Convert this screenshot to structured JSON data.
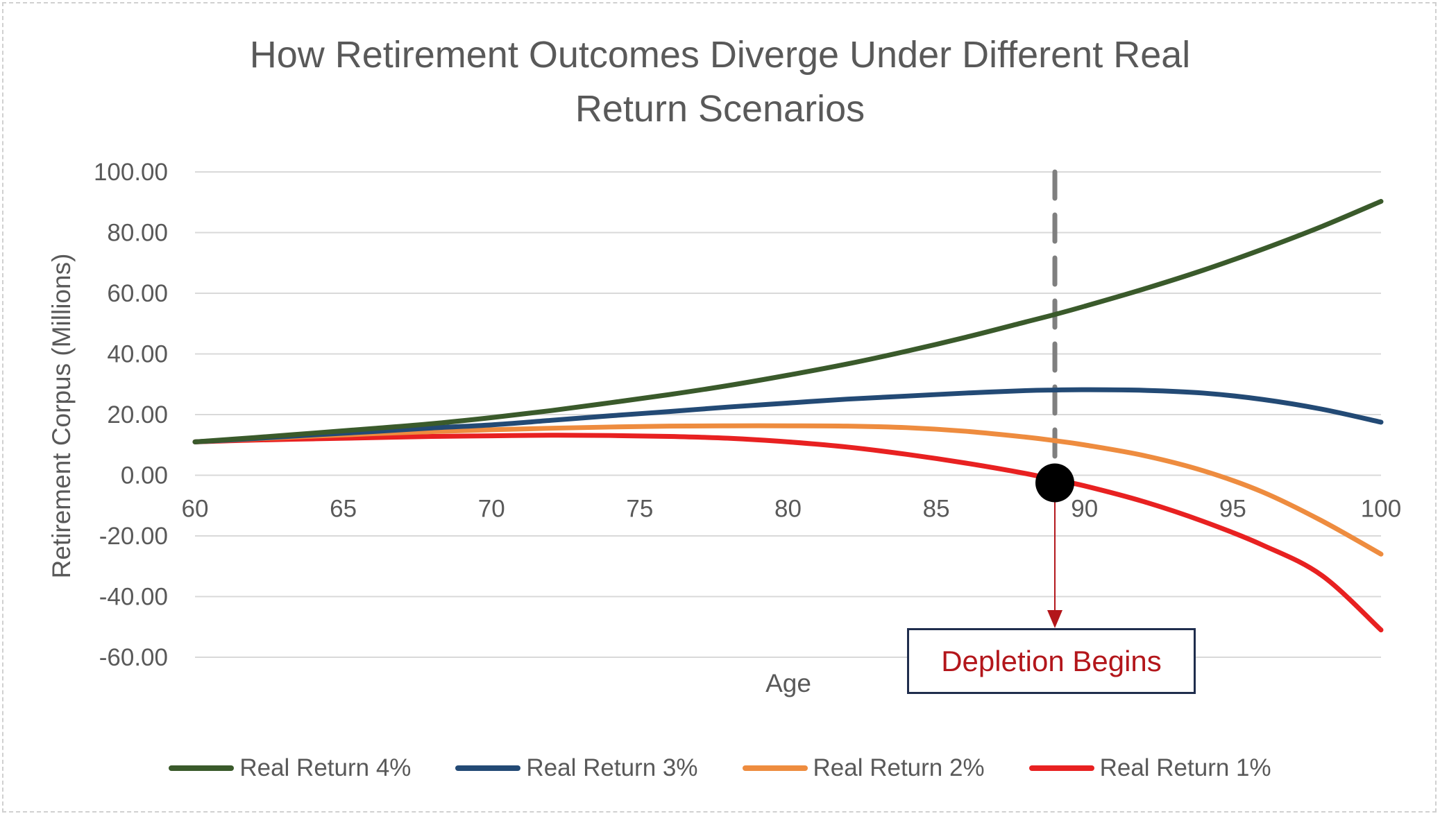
{
  "chart_data": {
    "type": "line",
    "title_lines": [
      "How Retirement Outcomes Diverge Under Different Real",
      "Return Scenarios"
    ],
    "xlabel": "Age",
    "ylabel": "Retirement Corpus (Millions)",
    "xlim": [
      60,
      100
    ],
    "ylim": [
      -60,
      100
    ],
    "x_ticks": [
      60,
      65,
      70,
      75,
      80,
      85,
      90,
      95,
      100
    ],
    "x_tick_labels": [
      "60",
      "65",
      "70",
      "75",
      "80",
      "85",
      "90",
      "95",
      "100"
    ],
    "y_ticks": [
      100,
      80,
      60,
      40,
      20,
      0,
      -20,
      -40,
      -60
    ],
    "y_tick_labels": [
      "100.00",
      "80.00",
      "60.00",
      "40.00",
      "20.00",
      "0.00",
      "-20.00",
      "-40.00",
      "-60.00"
    ],
    "grid": "horizontal",
    "legend_position": "bottom",
    "x": [
      60,
      62,
      64,
      66,
      68,
      70,
      72,
      74,
      76,
      78,
      80,
      82,
      84,
      86,
      88,
      89,
      90,
      92,
      94,
      96,
      98,
      100
    ],
    "series": [
      {
        "name": "Real Return 4%",
        "color": "#3a5a2b",
        "values": [
          11.0,
          12.4,
          13.9,
          15.4,
          17.0,
          19.0,
          21.3,
          23.9,
          26.6,
          29.6,
          33.0,
          36.7,
          40.9,
          45.5,
          50.5,
          53.0,
          55.7,
          61.4,
          67.6,
          74.5,
          82.0,
          90.3
        ]
      },
      {
        "name": "Real Return 3%",
        "color": "#234a75",
        "values": [
          11.0,
          12.1,
          13.3,
          14.4,
          15.6,
          16.6,
          18.1,
          19.6,
          21.0,
          22.5,
          23.8,
          25.1,
          26.1,
          27.1,
          27.9,
          28.1,
          28.2,
          28.0,
          27.1,
          25.0,
          21.8,
          17.5
        ]
      },
      {
        "name": "Real Return 2%",
        "color": "#ee8c3f",
        "values": [
          11.0,
          12.0,
          12.9,
          13.7,
          14.4,
          15.0,
          15.5,
          15.9,
          16.2,
          16.3,
          16.3,
          16.2,
          15.7,
          14.5,
          12.6,
          11.4,
          10.0,
          6.5,
          1.5,
          -5.5,
          -15.0,
          -26.0
        ]
      },
      {
        "name": "Real Return 1%",
        "color": "#e82121",
        "values": [
          11.0,
          11.6,
          12.0,
          12.4,
          12.8,
          13.0,
          13.2,
          13.1,
          12.8,
          12.2,
          11.0,
          9.3,
          6.9,
          4.0,
          0.6,
          -1.5,
          -3.5,
          -8.7,
          -15.2,
          -23.0,
          -33.0,
          -51.0
        ]
      }
    ],
    "reference_line": {
      "x": 89,
      "style": "dashed",
      "color": "#7f7f7f"
    },
    "marker_point": {
      "x": 89,
      "y": -2.5,
      "color": "#000000"
    },
    "annotation": {
      "text": "Depletion Begins",
      "arrow_from_x": 89,
      "color": "#b3161b"
    }
  }
}
